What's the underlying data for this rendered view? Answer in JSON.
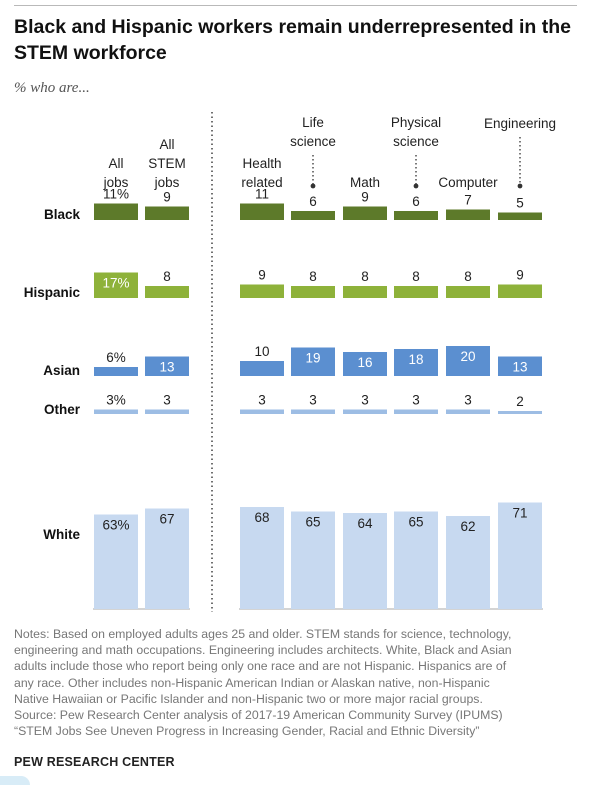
{
  "title": "Black and Hispanic workers remain underrepresented in the STEM workforce",
  "subtitle": "% who are...",
  "chart_data": {
    "type": "bar",
    "groups_left": [
      {
        "lines": [
          "All",
          "jobs"
        ]
      },
      {
        "lines": [
          "All",
          "STEM",
          "jobs"
        ]
      }
    ],
    "groups_right": [
      {
        "lines": [
          "Health",
          "related"
        ]
      },
      {
        "lines": [
          "Life",
          "science"
        ]
      },
      {
        "lines": [
          "Math"
        ]
      },
      {
        "lines": [
          "Physical",
          "science"
        ]
      },
      {
        "lines": [
          "Computer"
        ]
      },
      {
        "lines": [
          "Engineering"
        ]
      }
    ],
    "series": [
      {
        "name": "Black",
        "color": "#5d7a2a",
        "values": [
          11,
          9,
          11,
          6,
          9,
          6,
          7,
          5
        ],
        "labels": [
          "11%",
          "9",
          "11",
          "6",
          "9",
          "6",
          "7",
          "5"
        ]
      },
      {
        "name": "Hispanic",
        "color": "#8eb23a",
        "values": [
          17,
          8,
          9,
          8,
          8,
          8,
          8,
          9
        ],
        "labels": [
          "17%",
          "8",
          "9",
          "8",
          "8",
          "8",
          "8",
          "9"
        ]
      },
      {
        "name": "Asian",
        "color": "#5b8fd0",
        "values": [
          6,
          13,
          10,
          19,
          16,
          18,
          20,
          13
        ],
        "labels": [
          "6%",
          "13",
          "10",
          "19",
          "16",
          "18",
          "20",
          "13"
        ]
      },
      {
        "name": "Other",
        "color": "#9dbde4",
        "values": [
          3,
          3,
          3,
          3,
          3,
          3,
          3,
          2
        ],
        "labels": [
          "3%",
          "3",
          "3",
          "3",
          "3",
          "3",
          "3",
          "2"
        ]
      },
      {
        "name": "White",
        "color": "#c7d9f0",
        "values": [
          63,
          67,
          68,
          65,
          64,
          65,
          62,
          71
        ],
        "labels": [
          "63%",
          "67",
          "68",
          "65",
          "64",
          "65",
          "62",
          "71"
        ]
      }
    ]
  },
  "notes": [
    "Notes: Based on employed adults ages 25 and older. STEM stands for science, technology,",
    "engineering and math occupations. Engineering includes architects. White, Black and Asian",
    "adults include those who report being only one race and are not Hispanic. Hispanics are of",
    "any race. Other includes non-Hispanic American Indian or Alaskan native, non-Hispanic",
    "Native Hawaiian or Pacific Islander and non-Hispanic two or more major racial groups.",
    "Source: Pew Research Center analysis of 2017-19 American Community Survey (IPUMS)",
    "“STEM Jobs See Uneven Progress in Increasing Gender, Racial and Ethnic Diversity”"
  ],
  "brand": "PEW RESEARCH CENTER"
}
